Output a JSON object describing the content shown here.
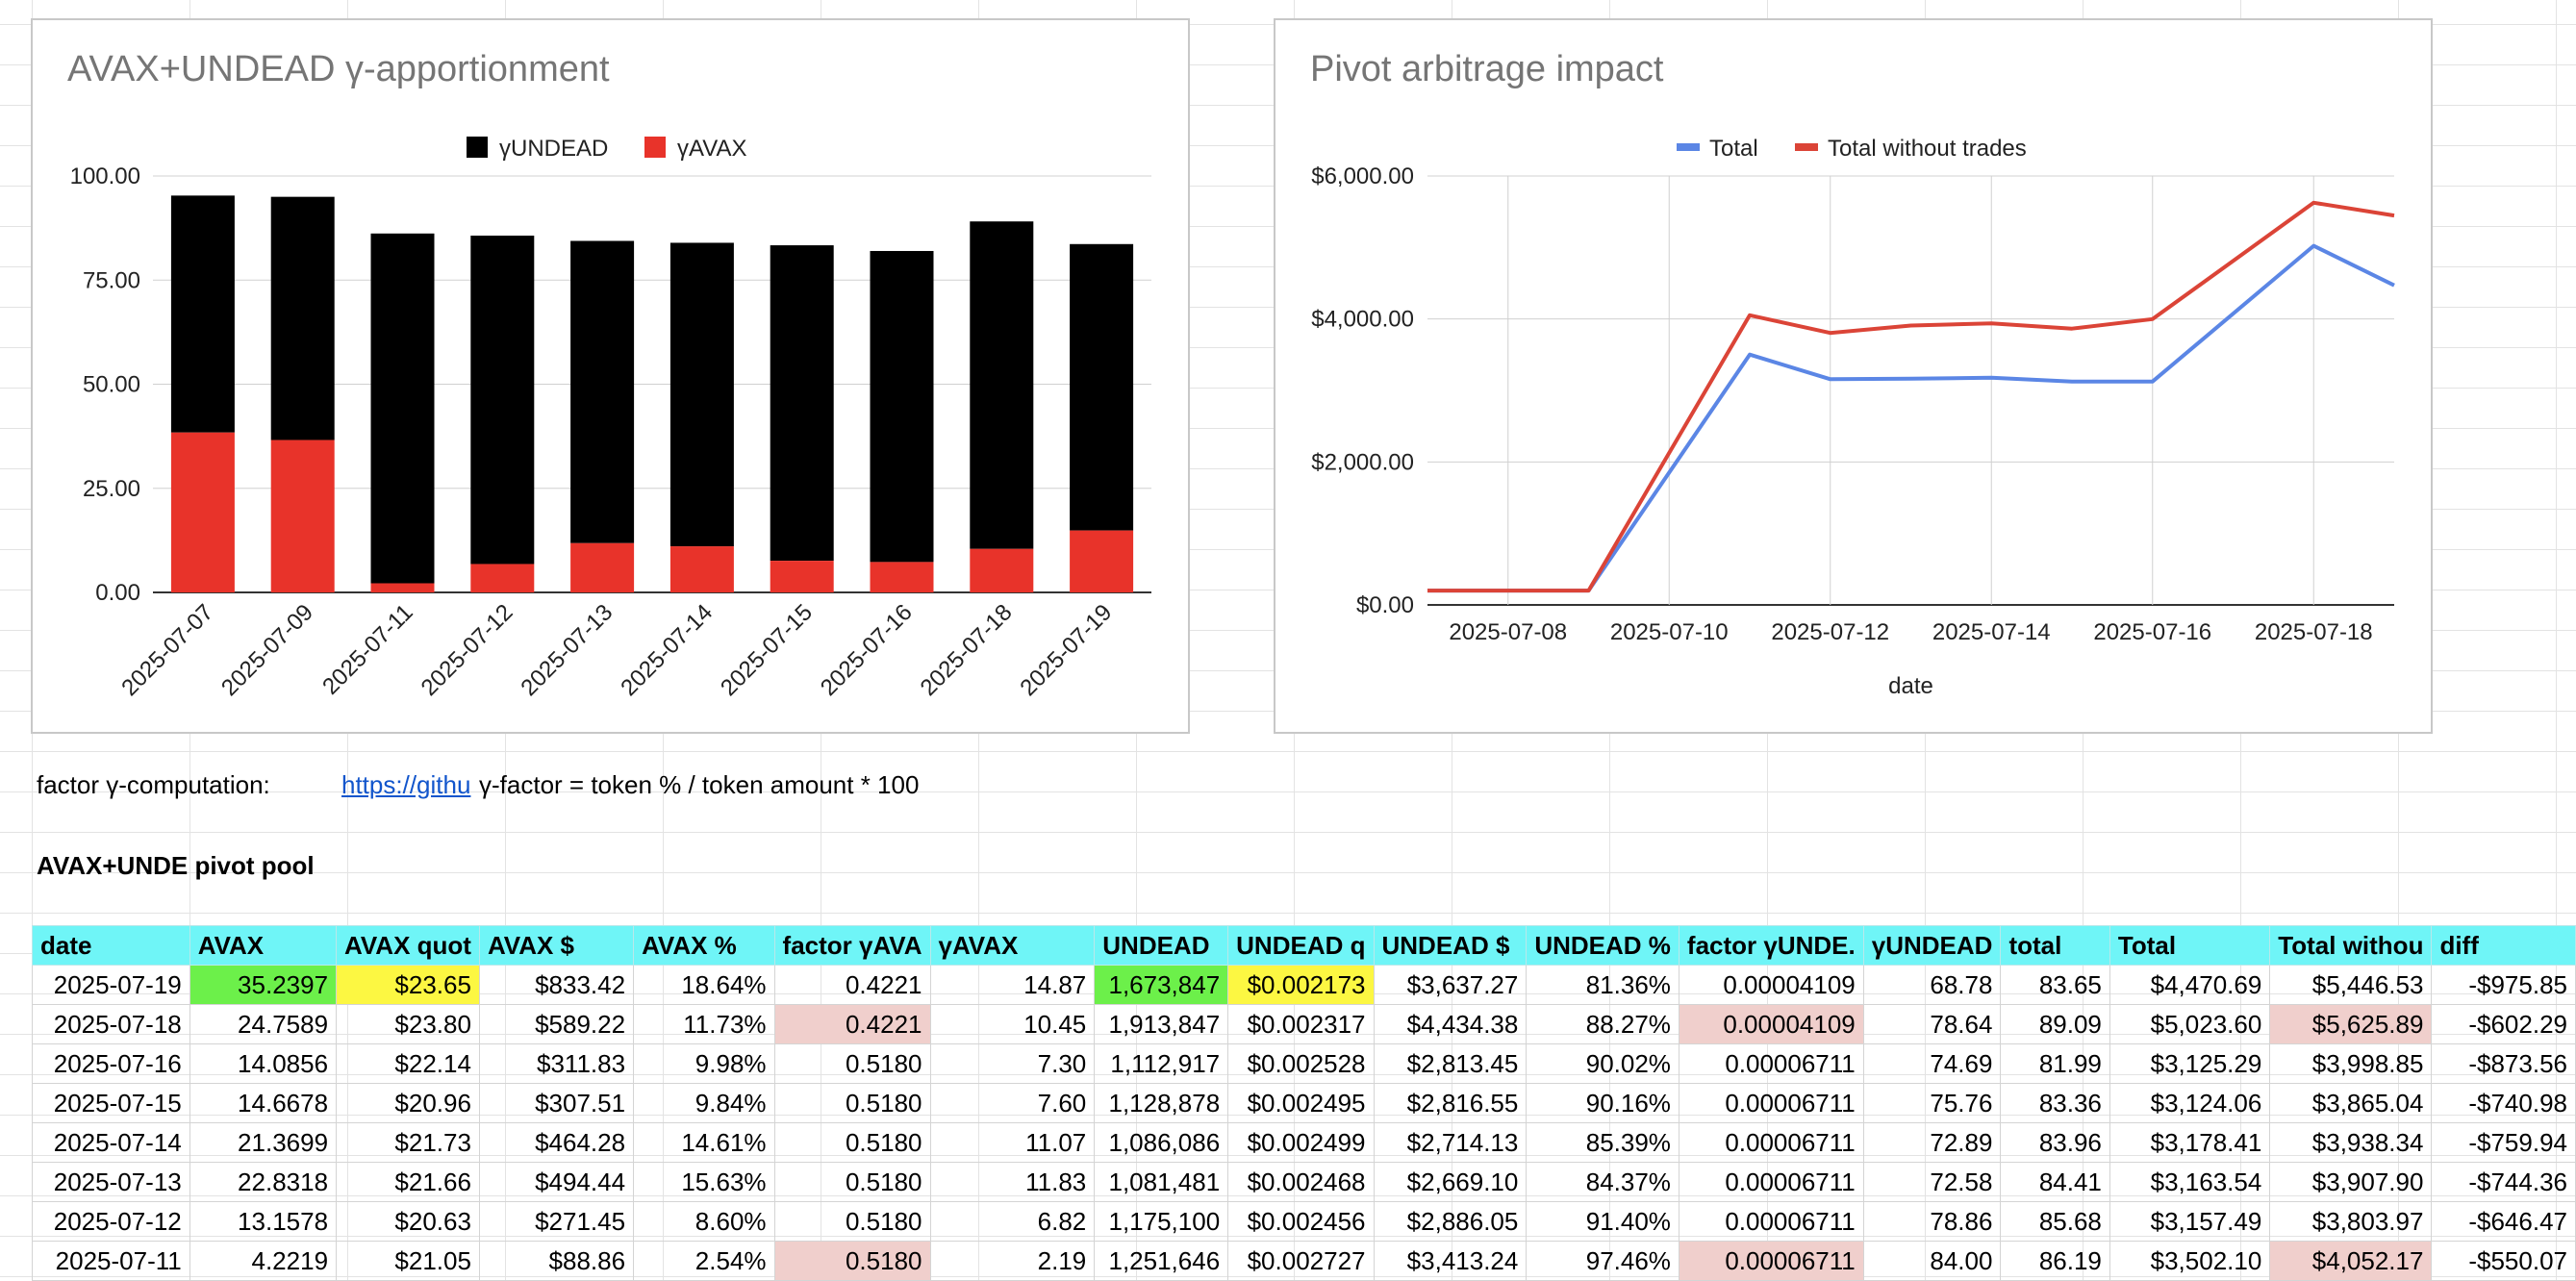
{
  "chart1": {
    "title": "AVAX+UNDEAD γ-apportionment",
    "legend": [
      {
        "name": "γUNDEAD",
        "color": "#000000"
      },
      {
        "name": "γAVAX",
        "color": "#e8332a"
      }
    ],
    "y_ticks": [
      "100.00",
      "75.00",
      "50.00",
      "25.00",
      "0.00"
    ]
  },
  "chart2": {
    "title": "Pivot arbitrage impact",
    "legend": [
      {
        "name": "Total",
        "color": "#5b86e5"
      },
      {
        "name": "Total without trades",
        "color": "#db4437"
      }
    ],
    "y_ticks": [
      "$6,000.00",
      "$4,000.00",
      "$2,000.00",
      "$0.00"
    ],
    "x_ticks": [
      "2025-07-08",
      "2025-07-10",
      "2025-07-12",
      "2025-07-14",
      "2025-07-16",
      "2025-07-18"
    ],
    "xlabel": "date"
  },
  "chart_data": [
    {
      "type": "bar",
      "stacked": true,
      "title": "AVAX+UNDEAD γ-apportionment",
      "categories": [
        "2025-07-07",
        "2025-07-09",
        "2025-07-11",
        "2025-07-12",
        "2025-07-13",
        "2025-07-14",
        "2025-07-15",
        "2025-07-16",
        "2025-07-18",
        "2025-07-19"
      ],
      "series": [
        {
          "name": "γAVAX",
          "values": [
            38.4,
            36.6,
            2.19,
            6.82,
            11.83,
            11.07,
            7.6,
            7.3,
            10.45,
            14.87
          ]
        },
        {
          "name": "γUNDEAD",
          "values": [
            56.9,
            58.4,
            84.0,
            78.86,
            72.58,
            72.89,
            75.76,
            74.69,
            78.64,
            68.78
          ]
        }
      ],
      "ylim": [
        0,
        100
      ],
      "legend_position": "top",
      "grid": true
    },
    {
      "type": "line",
      "title": "Pivot arbitrage impact",
      "xlabel": "date",
      "x": [
        "2025-07-07",
        "2025-07-09",
        "2025-07-11",
        "2025-07-12",
        "2025-07-13",
        "2025-07-14",
        "2025-07-15",
        "2025-07-16",
        "2025-07-18",
        "2025-07-19"
      ],
      "series": [
        {
          "name": "Total",
          "values": [
            200,
            200,
            3502.1,
            3157.49,
            3163.54,
            3178.41,
            3124.06,
            3125.29,
            5023.6,
            4470.69
          ]
        },
        {
          "name": "Total without trades",
          "values": [
            200,
            200,
            4052.17,
            3803.97,
            3907.9,
            3938.34,
            3865.04,
            3998.85,
            5625.89,
            5446.53
          ]
        }
      ],
      "ylim": [
        0,
        6000
      ],
      "legend_position": "top",
      "grid": true
    }
  ],
  "info": {
    "label": "factor γ-computation:",
    "link": "https://githu",
    "formula": "γ-factor = token % / token amount * 100"
  },
  "pool_title": "AVAX+UNDE pivot pool",
  "table": {
    "headers": [
      "date",
      "AVAX",
      "AVAX quot",
      "AVAX $",
      "AVAX %",
      "factor γAVA",
      "γAVAX",
      "UNDEAD",
      "UNDEAD q",
      "UNDEAD $",
      "UNDEAD %",
      "factor γUNDE.",
      "γUNDEAD",
      "total",
      "Total",
      "Total withou",
      "diff"
    ],
    "rows": [
      [
        "2025-07-19",
        "35.2397",
        "$23.65",
        "$833.42",
        "18.64%",
        "0.4221",
        "14.87",
        "1,673,847",
        "$0.002173",
        "$3,637.27",
        "81.36%",
        "0.00004109",
        "68.78",
        "83.65",
        "$4,470.69",
        "$5,446.53",
        "-$975.85"
      ],
      [
        "2025-07-18",
        "24.7589",
        "$23.80",
        "$589.22",
        "11.73%",
        "0.4221",
        "10.45",
        "1,913,847",
        "$0.002317",
        "$4,434.38",
        "88.27%",
        "0.00004109",
        "78.64",
        "89.09",
        "$5,023.60",
        "$5,625.89",
        "-$602.29"
      ],
      [
        "2025-07-16",
        "14.0856",
        "$22.14",
        "$311.83",
        "9.98%",
        "0.5180",
        "7.30",
        "1,112,917",
        "$0.002528",
        "$2,813.45",
        "90.02%",
        "0.00006711",
        "74.69",
        "81.99",
        "$3,125.29",
        "$3,998.85",
        "-$873.56"
      ],
      [
        "2025-07-15",
        "14.6678",
        "$20.96",
        "$307.51",
        "9.84%",
        "0.5180",
        "7.60",
        "1,128,878",
        "$0.002495",
        "$2,816.55",
        "90.16%",
        "0.00006711",
        "75.76",
        "83.36",
        "$3,124.06",
        "$3,865.04",
        "-$740.98"
      ],
      [
        "2025-07-14",
        "21.3699",
        "$21.73",
        "$464.28",
        "14.61%",
        "0.5180",
        "11.07",
        "1,086,086",
        "$0.002499",
        "$2,714.13",
        "85.39%",
        "0.00006711",
        "72.89",
        "83.96",
        "$3,178.41",
        "$3,938.34",
        "-$759.94"
      ],
      [
        "2025-07-13",
        "22.8318",
        "$21.66",
        "$494.44",
        "15.63%",
        "0.5180",
        "11.83",
        "1,081,481",
        "$0.002468",
        "$2,669.10",
        "84.37%",
        "0.00006711",
        "72.58",
        "84.41",
        "$3,163.54",
        "$3,907.90",
        "-$744.36"
      ],
      [
        "2025-07-12",
        "13.1578",
        "$20.63",
        "$271.45",
        "8.60%",
        "0.5180",
        "6.82",
        "1,175,100",
        "$0.002456",
        "$2,886.05",
        "91.40%",
        "0.00006711",
        "78.86",
        "85.68",
        "$3,157.49",
        "$3,803.97",
        "-$646.47"
      ],
      [
        "2025-07-11",
        "4.2219",
        "$21.05",
        "$88.86",
        "2.54%",
        "0.5180",
        "2.19",
        "1,251,646",
        "$0.002727",
        "$3,413.24",
        "97.46%",
        "0.00006711",
        "84.00",
        "86.19",
        "$3,502.10",
        "$4,052.17",
        "-$550.07"
      ]
    ],
    "highlights": {
      "0-1": "green",
      "0-2": "yellow",
      "0-7": "green",
      "0-8": "yellow",
      "1-5": "pink",
      "1-11": "pink",
      "1-15": "pink",
      "7-5": "pink",
      "7-11": "pink",
      "7-15": "pink"
    }
  }
}
